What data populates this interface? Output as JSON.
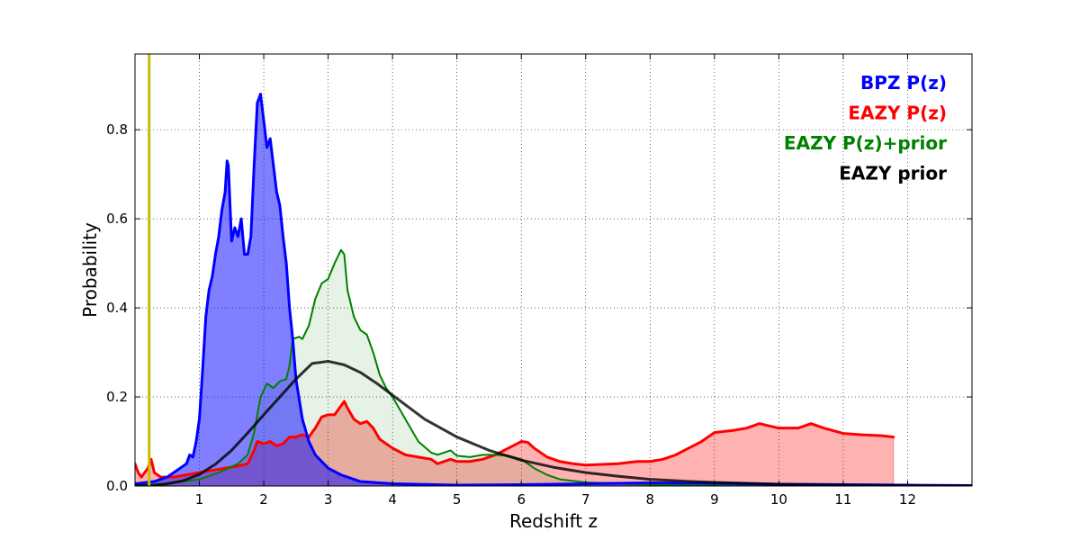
{
  "chart_data": {
    "type": "area",
    "xlabel": "Redshift z",
    "ylabel": "Probability",
    "xlim": [
      0,
      13
    ],
    "ylim": [
      0,
      0.97
    ],
    "grid": true,
    "legend_placement": "top-right",
    "x_tick_values": [
      1,
      2,
      3,
      4,
      5,
      6,
      7,
      8,
      9,
      10,
      11,
      12
    ],
    "x_tick_labels": [
      "1",
      "2",
      "3",
      "4",
      "5",
      "6",
      "7",
      "8",
      "9",
      "10",
      "11",
      "12"
    ],
    "y_tick_values": [
      0.0,
      0.2,
      0.4,
      0.6,
      0.8
    ],
    "y_tick_labels": [
      "0.0",
      "0.2",
      "0.4",
      "0.6",
      "0.8"
    ],
    "reference_line": {
      "x": 0.22,
      "color": "#bfbf00"
    },
    "series": [
      {
        "name": "EAZY P(z)",
        "color": "#ff0000",
        "fill": "#ff0000",
        "fill_opacity": 0.3,
        "points": [
          [
            0.0,
            0.05
          ],
          [
            0.05,
            0.03
          ],
          [
            0.1,
            0.02
          ],
          [
            0.15,
            0.03
          ],
          [
            0.2,
            0.04
          ],
          [
            0.25,
            0.06
          ],
          [
            0.3,
            0.03
          ],
          [
            0.4,
            0.02
          ],
          [
            0.6,
            0.02
          ],
          [
            0.8,
            0.025
          ],
          [
            1.0,
            0.03
          ],
          [
            1.2,
            0.035
          ],
          [
            1.4,
            0.04
          ],
          [
            1.6,
            0.045
          ],
          [
            1.75,
            0.05
          ],
          [
            1.85,
            0.08
          ],
          [
            1.9,
            0.1
          ],
          [
            2.0,
            0.095
          ],
          [
            2.1,
            0.1
          ],
          [
            2.2,
            0.09
          ],
          [
            2.3,
            0.095
          ],
          [
            2.4,
            0.11
          ],
          [
            2.5,
            0.11
          ],
          [
            2.6,
            0.115
          ],
          [
            2.7,
            0.11
          ],
          [
            2.8,
            0.13
          ],
          [
            2.9,
            0.155
          ],
          [
            3.0,
            0.16
          ],
          [
            3.1,
            0.16
          ],
          [
            3.2,
            0.18
          ],
          [
            3.25,
            0.19
          ],
          [
            3.3,
            0.175
          ],
          [
            3.4,
            0.15
          ],
          [
            3.5,
            0.14
          ],
          [
            3.6,
            0.145
          ],
          [
            3.7,
            0.13
          ],
          [
            3.8,
            0.105
          ],
          [
            3.9,
            0.095
          ],
          [
            4.0,
            0.085
          ],
          [
            4.2,
            0.07
          ],
          [
            4.4,
            0.065
          ],
          [
            4.6,
            0.06
          ],
          [
            4.7,
            0.05
          ],
          [
            4.8,
            0.055
          ],
          [
            4.9,
            0.06
          ],
          [
            5.0,
            0.055
          ],
          [
            5.2,
            0.055
          ],
          [
            5.4,
            0.06
          ],
          [
            5.6,
            0.07
          ],
          [
            5.8,
            0.085
          ],
          [
            6.0,
            0.1
          ],
          [
            6.1,
            0.098
          ],
          [
            6.2,
            0.085
          ],
          [
            6.4,
            0.065
          ],
          [
            6.6,
            0.055
          ],
          [
            6.8,
            0.05
          ],
          [
            7.0,
            0.047
          ],
          [
            7.5,
            0.05
          ],
          [
            7.8,
            0.055
          ],
          [
            8.0,
            0.055
          ],
          [
            8.2,
            0.06
          ],
          [
            8.4,
            0.07
          ],
          [
            8.6,
            0.085
          ],
          [
            8.8,
            0.1
          ],
          [
            9.0,
            0.12
          ],
          [
            9.3,
            0.125
          ],
          [
            9.5,
            0.13
          ],
          [
            9.7,
            0.14
          ],
          [
            10.0,
            0.13
          ],
          [
            10.3,
            0.13
          ],
          [
            10.5,
            0.14
          ],
          [
            10.7,
            0.13
          ],
          [
            11.0,
            0.118
          ],
          [
            11.3,
            0.115
          ],
          [
            11.6,
            0.113
          ],
          [
            11.78,
            0.11
          ]
        ]
      },
      {
        "name": "EAZY P(z)+prior",
        "color": "#008000",
        "fill": "#008000",
        "fill_opacity": 0.1,
        "points": [
          [
            0.0,
            0.0
          ],
          [
            0.5,
            0.005
          ],
          [
            1.0,
            0.015
          ],
          [
            1.3,
            0.03
          ],
          [
            1.6,
            0.05
          ],
          [
            1.75,
            0.07
          ],
          [
            1.85,
            0.12
          ],
          [
            1.95,
            0.2
          ],
          [
            2.05,
            0.23
          ],
          [
            2.15,
            0.22
          ],
          [
            2.25,
            0.235
          ],
          [
            2.35,
            0.24
          ],
          [
            2.4,
            0.27
          ],
          [
            2.45,
            0.33
          ],
          [
            2.55,
            0.335
          ],
          [
            2.6,
            0.33
          ],
          [
            2.7,
            0.36
          ],
          [
            2.8,
            0.42
          ],
          [
            2.9,
            0.455
          ],
          [
            3.0,
            0.465
          ],
          [
            3.1,
            0.5
          ],
          [
            3.2,
            0.53
          ],
          [
            3.25,
            0.52
          ],
          [
            3.3,
            0.44
          ],
          [
            3.4,
            0.38
          ],
          [
            3.5,
            0.35
          ],
          [
            3.6,
            0.34
          ],
          [
            3.7,
            0.3
          ],
          [
            3.8,
            0.25
          ],
          [
            3.9,
            0.22
          ],
          [
            4.0,
            0.2
          ],
          [
            4.2,
            0.15
          ],
          [
            4.4,
            0.1
          ],
          [
            4.6,
            0.075
          ],
          [
            4.7,
            0.07
          ],
          [
            4.8,
            0.075
          ],
          [
            4.9,
            0.08
          ],
          [
            5.0,
            0.068
          ],
          [
            5.2,
            0.065
          ],
          [
            5.4,
            0.07
          ],
          [
            5.6,
            0.07
          ],
          [
            5.8,
            0.068
          ],
          [
            6.0,
            0.06
          ],
          [
            6.2,
            0.04
          ],
          [
            6.4,
            0.025
          ],
          [
            6.6,
            0.015
          ],
          [
            7.0,
            0.008
          ],
          [
            8.0,
            0.003
          ],
          [
            9.0,
            0.001
          ],
          [
            10.0,
            0.0
          ]
        ]
      },
      {
        "name": "BPZ P(z)",
        "color": "#0000ff",
        "fill": "#0000ff",
        "fill_opacity": 0.5,
        "points": [
          [
            0.0,
            0.005
          ],
          [
            0.3,
            0.01
          ],
          [
            0.5,
            0.02
          ],
          [
            0.7,
            0.04
          ],
          [
            0.8,
            0.05
          ],
          [
            0.85,
            0.07
          ],
          [
            0.9,
            0.065
          ],
          [
            0.95,
            0.1
          ],
          [
            1.0,
            0.15
          ],
          [
            1.05,
            0.26
          ],
          [
            1.1,
            0.38
          ],
          [
            1.15,
            0.44
          ],
          [
            1.2,
            0.47
          ],
          [
            1.25,
            0.52
          ],
          [
            1.3,
            0.56
          ],
          [
            1.35,
            0.62
          ],
          [
            1.4,
            0.66
          ],
          [
            1.43,
            0.73
          ],
          [
            1.45,
            0.72
          ],
          [
            1.5,
            0.55
          ],
          [
            1.55,
            0.58
          ],
          [
            1.6,
            0.56
          ],
          [
            1.65,
            0.6
          ],
          [
            1.7,
            0.52
          ],
          [
            1.75,
            0.52
          ],
          [
            1.8,
            0.56
          ],
          [
            1.85,
            0.72
          ],
          [
            1.9,
            0.86
          ],
          [
            1.95,
            0.88
          ],
          [
            2.0,
            0.82
          ],
          [
            2.05,
            0.76
          ],
          [
            2.1,
            0.78
          ],
          [
            2.15,
            0.72
          ],
          [
            2.2,
            0.66
          ],
          [
            2.25,
            0.63
          ],
          [
            2.3,
            0.56
          ],
          [
            2.35,
            0.5
          ],
          [
            2.4,
            0.4
          ],
          [
            2.45,
            0.33
          ],
          [
            2.5,
            0.24
          ],
          [
            2.6,
            0.15
          ],
          [
            2.7,
            0.1
          ],
          [
            2.8,
            0.07
          ],
          [
            3.0,
            0.04
          ],
          [
            3.2,
            0.025
          ],
          [
            3.5,
            0.01
          ],
          [
            4.0,
            0.005
          ],
          [
            5.0,
            0.002
          ],
          [
            6.0,
            0.003
          ],
          [
            7.0,
            0.005
          ],
          [
            8.0,
            0.007
          ],
          [
            9.0,
            0.006
          ],
          [
            10.0,
            0.004
          ],
          [
            11.0,
            0.003
          ],
          [
            12.0,
            0.002
          ],
          [
            13.0,
            0.001
          ]
        ]
      },
      {
        "name": "EAZY prior",
        "color": "#000000",
        "fill": null,
        "points": [
          [
            0.0,
            0.0
          ],
          [
            0.3,
            0.002
          ],
          [
            0.5,
            0.005
          ],
          [
            0.75,
            0.012
          ],
          [
            1.0,
            0.026
          ],
          [
            1.25,
            0.049
          ],
          [
            1.5,
            0.08
          ],
          [
            1.75,
            0.119
          ],
          [
            2.0,
            0.16
          ],
          [
            2.25,
            0.2
          ],
          [
            2.5,
            0.24
          ],
          [
            2.75,
            0.275
          ],
          [
            3.0,
            0.28
          ],
          [
            3.25,
            0.272
          ],
          [
            3.5,
            0.255
          ],
          [
            3.75,
            0.231
          ],
          [
            4.0,
            0.204
          ],
          [
            4.5,
            0.15
          ],
          [
            5.0,
            0.11
          ],
          [
            5.5,
            0.08
          ],
          [
            6.0,
            0.058
          ],
          [
            6.5,
            0.042
          ],
          [
            7.0,
            0.03
          ],
          [
            7.5,
            0.022
          ],
          [
            8.0,
            0.015
          ],
          [
            8.5,
            0.011
          ],
          [
            9.0,
            0.008
          ],
          [
            9.5,
            0.006
          ],
          [
            10.0,
            0.004
          ],
          [
            10.5,
            0.003
          ],
          [
            11.0,
            0.002
          ],
          [
            11.5,
            0.0015
          ],
          [
            12.0,
            0.001
          ],
          [
            12.5,
            0.0008
          ],
          [
            13.0,
            0.0006
          ]
        ]
      }
    ],
    "legend": [
      {
        "label": "BPZ P(z)",
        "color": "#0000ff"
      },
      {
        "label": "EAZY P(z)",
        "color": "#ff0000"
      },
      {
        "label": "EAZY P(z)+prior",
        "color": "#008000"
      },
      {
        "label": "EAZY prior",
        "color": "#000000"
      }
    ]
  }
}
